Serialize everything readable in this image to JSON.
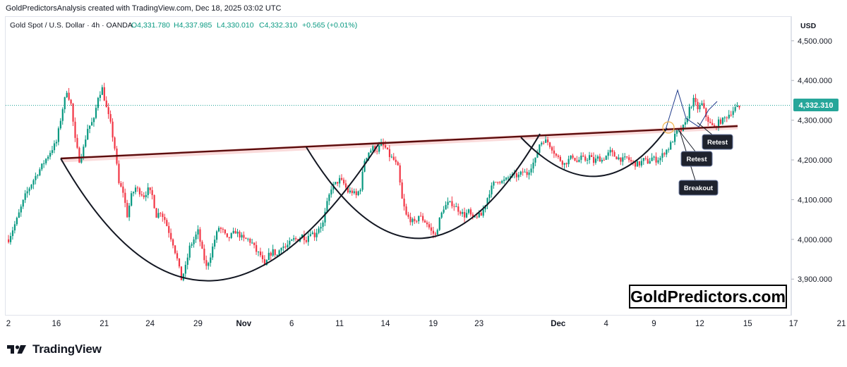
{
  "attribution": "GoldPredictorsAnalysis created with TradingView.com, Dec 18, 2025 03:02 UTC",
  "header": {
    "symbol": "Gold Spot / U.S. Dollar · 4h · OANDA",
    "open": "O4,331.780",
    "high": "H4,337.985",
    "low": "L4,330.010",
    "close": "C4,332.310",
    "change": "+0.565 (+0.01%)"
  },
  "currency": "USD",
  "price_label": "4,332.310",
  "annotations": {
    "breakout": "Breakout",
    "retest1": "Retest",
    "retest2": "Retest"
  },
  "watermark": "GoldPredictors.com",
  "footer_brand": "TradingView",
  "colors": {
    "up": "#089981",
    "down": "#f23645",
    "price_label_bg": "#26a69a",
    "trendline": "#5b0b0b"
  },
  "chart_data": {
    "type": "candlestick",
    "title": "Gold Spot / U.S. Dollar · 4h · OANDA",
    "ylim": [
      3810,
      4560
    ],
    "y_ticks": [
      {
        "value": 4500,
        "label": "4,500.000"
      },
      {
        "value": 4400,
        "label": "4,400.000"
      },
      {
        "value": 4300,
        "label": "4,300.000"
      },
      {
        "value": 4200,
        "label": "4,200.000"
      },
      {
        "value": 4100,
        "label": "4,100.000"
      },
      {
        "value": 4000,
        "label": "4,000.000"
      },
      {
        "value": 3900,
        "label": "3,900.000"
      }
    ],
    "x_ticks": [
      {
        "label": "2",
        "index": 0
      },
      {
        "label": "16",
        "index": 23
      },
      {
        "label": "21",
        "index": 46
      },
      {
        "label": "24",
        "index": 68
      },
      {
        "label": "29",
        "index": 91
      },
      {
        "label": "Nov",
        "index": 113
      },
      {
        "label": "6",
        "index": 136
      },
      {
        "label": "11",
        "index": 159
      },
      {
        "label": "14",
        "index": 181
      },
      {
        "label": "19",
        "index": 204
      },
      {
        "label": "23",
        "index": 226
      },
      {
        "label": "Dec",
        "index": 264
      },
      {
        "label": "4",
        "index": 287
      },
      {
        "label": "9",
        "index": 310
      },
      {
        "label": "12",
        "index": 332
      },
      {
        "label": "15",
        "index": 355
      },
      {
        "label": "17",
        "index": 377
      },
      {
        "label": "21",
        "index": 400
      }
    ],
    "price_path": [
      [
        0,
        4000
      ],
      [
        4,
        4050
      ],
      [
        8,
        4110
      ],
      [
        12,
        4150
      ],
      [
        16,
        4185
      ],
      [
        20,
        4220
      ],
      [
        23,
        4245
      ],
      [
        26,
        4330
      ],
      [
        28,
        4375
      ],
      [
        30,
        4340
      ],
      [
        32,
        4250
      ],
      [
        34,
        4200
      ],
      [
        36,
        4230
      ],
      [
        38,
        4280
      ],
      [
        41,
        4300
      ],
      [
        43,
        4360
      ],
      [
        45,
        4380
      ],
      [
        47,
        4330
      ],
      [
        49,
        4290
      ],
      [
        51,
        4230
      ],
      [
        53,
        4140
      ],
      [
        55,
        4120
      ],
      [
        57,
        4060
      ],
      [
        59,
        4110
      ],
      [
        61,
        4130
      ],
      [
        63,
        4120
      ],
      [
        65,
        4110
      ],
      [
        67,
        4125
      ],
      [
        69,
        4110
      ],
      [
        71,
        4060
      ],
      [
        73,
        4070
      ],
      [
        75,
        4050
      ],
      [
        77,
        4020
      ],
      [
        79,
        3990
      ],
      [
        81,
        3950
      ],
      [
        83,
        3900
      ],
      [
        85,
        3930
      ],
      [
        87,
        3980
      ],
      [
        89,
        4000
      ],
      [
        91,
        4020
      ],
      [
        93,
        3970
      ],
      [
        95,
        3930
      ],
      [
        97,
        3960
      ],
      [
        99,
        4000
      ],
      [
        101,
        4030
      ],
      [
        103,
        4020
      ],
      [
        105,
        4000
      ],
      [
        107,
        4010
      ],
      [
        109,
        4020
      ],
      [
        111,
        4010
      ],
      [
        113,
        4000
      ],
      [
        115,
        4000
      ],
      [
        117,
        3990
      ],
      [
        119,
        3970
      ],
      [
        121,
        3960
      ],
      [
        123,
        3930
      ],
      [
        125,
        3960
      ],
      [
        127,
        3970
      ],
      [
        129,
        3960
      ],
      [
        131,
        3985
      ],
      [
        133,
        3980
      ],
      [
        135,
        3990
      ],
      [
        137,
        4000
      ],
      [
        139,
        4000
      ],
      [
        141,
        4010
      ],
      [
        143,
        4000
      ],
      [
        145,
        4020
      ],
      [
        147,
        4010
      ],
      [
        149,
        4030
      ],
      [
        151,
        4040
      ],
      [
        153,
        4090
      ],
      [
        155,
        4130
      ],
      [
        157,
        4140
      ],
      [
        159,
        4150
      ],
      [
        161,
        4140
      ],
      [
        163,
        4120
      ],
      [
        165,
        4120
      ],
      [
        167,
        4110
      ],
      [
        169,
        4130
      ],
      [
        171,
        4200
      ],
      [
        173,
        4220
      ],
      [
        175,
        4230
      ],
      [
        177,
        4225
      ],
      [
        179,
        4240
      ],
      [
        181,
        4230
      ],
      [
        183,
        4210
      ],
      [
        185,
        4200
      ],
      [
        187,
        4180
      ],
      [
        189,
        4100
      ],
      [
        191,
        4060
      ],
      [
        193,
        4050
      ],
      [
        195,
        4040
      ],
      [
        197,
        4060
      ],
      [
        199,
        4050
      ],
      [
        201,
        4040
      ],
      [
        203,
        4020
      ],
      [
        205,
        4010
      ],
      [
        207,
        4050
      ],
      [
        209,
        4080
      ],
      [
        211,
        4090
      ],
      [
        213,
        4090
      ],
      [
        215,
        4080
      ],
      [
        217,
        4070
      ],
      [
        219,
        4060
      ],
      [
        221,
        4070
      ],
      [
        223,
        4050
      ],
      [
        225,
        4060
      ],
      [
        227,
        4060
      ],
      [
        229,
        4090
      ],
      [
        231,
        4120
      ],
      [
        233,
        4140
      ],
      [
        235,
        4150
      ],
      [
        237,
        4145
      ],
      [
        239,
        4150
      ],
      [
        241,
        4160
      ],
      [
        243,
        4160
      ],
      [
        245,
        4160
      ],
      [
        247,
        4170
      ],
      [
        249,
        4165
      ],
      [
        251,
        4185
      ],
      [
        253,
        4200
      ],
      [
        255,
        4240
      ],
      [
        257,
        4250
      ],
      [
        259,
        4245
      ],
      [
        261,
        4230
      ],
      [
        263,
        4210
      ],
      [
        265,
        4200
      ],
      [
        267,
        4190
      ],
      [
        269,
        4200
      ],
      [
        271,
        4210
      ],
      [
        273,
        4195
      ],
      [
        275,
        4205
      ],
      [
        277,
        4200
      ],
      [
        279,
        4210
      ],
      [
        281,
        4195
      ],
      [
        283,
        4205
      ],
      [
        285,
        4200
      ],
      [
        287,
        4210
      ],
      [
        289,
        4220
      ],
      [
        291,
        4210
      ],
      [
        293,
        4205
      ],
      [
        295,
        4200
      ],
      [
        297,
        4205
      ],
      [
        299,
        4195
      ],
      [
        301,
        4190
      ],
      [
        303,
        4190
      ],
      [
        305,
        4200
      ],
      [
        307,
        4195
      ],
      [
        309,
        4205
      ],
      [
        311,
        4200
      ],
      [
        313,
        4205
      ],
      [
        315,
        4220
      ],
      [
        317,
        4230
      ],
      [
        319,
        4250
      ],
      [
        321,
        4270
      ],
      [
        323,
        4275
      ],
      [
        325,
        4290
      ],
      [
        327,
        4330
      ],
      [
        329,
        4350
      ],
      [
        331,
        4330
      ],
      [
        333,
        4340
      ],
      [
        335,
        4310
      ],
      [
        337,
        4290
      ],
      [
        339,
        4280
      ],
      [
        341,
        4295
      ],
      [
        343,
        4300
      ],
      [
        345,
        4310
      ],
      [
        347,
        4320
      ],
      [
        349,
        4330
      ],
      [
        351,
        4332
      ]
    ]
  }
}
